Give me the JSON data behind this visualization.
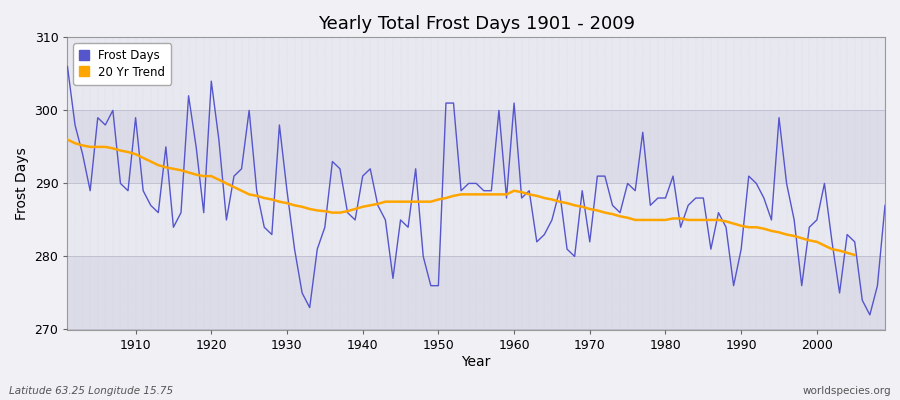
{
  "title": "Yearly Total Frost Days 1901 - 2009",
  "xlabel": "Year",
  "ylabel": "Frost Days",
  "ylim": [
    270,
    310
  ],
  "xlim": [
    1901,
    2009
  ],
  "yticks": [
    270,
    280,
    290,
    300,
    310
  ],
  "xticks": [
    1910,
    1920,
    1930,
    1940,
    1950,
    1960,
    1970,
    1980,
    1990,
    2000
  ],
  "line_color": "#5555cc",
  "trend_color": "#FFA500",
  "bg_color": "#f0f0f5",
  "bg_band1": "#e8e8ee",
  "bg_band2": "#d8d8e4",
  "grid_color": "#ccccdd",
  "bottom_left_label": "Latitude 63.25 Longitude 15.75",
  "bottom_right_label": "worldspecies.org",
  "legend_labels": [
    "Frost Days",
    "20 Yr Trend"
  ],
  "frost_days": {
    "1901": 306,
    "1902": 298,
    "1903": 294,
    "1904": 289,
    "1905": 299,
    "1906": 298,
    "1907": 300,
    "1908": 290,
    "1909": 289,
    "1910": 299,
    "1911": 289,
    "1912": 287,
    "1913": 286,
    "1914": 295,
    "1915": 284,
    "1916": 286,
    "1917": 302,
    "1918": 295,
    "1919": 286,
    "1920": 304,
    "1921": 296,
    "1922": 285,
    "1923": 291,
    "1924": 292,
    "1925": 300,
    "1926": 289,
    "1927": 284,
    "1928": 283,
    "1929": 298,
    "1930": 289,
    "1931": 281,
    "1932": 275,
    "1933": 273,
    "1934": 281,
    "1935": 284,
    "1936": 293,
    "1937": 292,
    "1938": 286,
    "1939": 285,
    "1940": 291,
    "1941": 292,
    "1942": 287,
    "1943": 285,
    "1944": 277,
    "1945": 285,
    "1946": 284,
    "1947": 292,
    "1948": 280,
    "1949": 276,
    "1950": 276,
    "1951": 301,
    "1952": 301,
    "1953": 289,
    "1954": 290,
    "1955": 290,
    "1956": 289,
    "1957": 289,
    "1958": 300,
    "1959": 288,
    "1960": 301,
    "1961": 288,
    "1962": 289,
    "1963": 282,
    "1964": 283,
    "1965": 285,
    "1966": 289,
    "1967": 281,
    "1968": 280,
    "1969": 289,
    "1970": 282,
    "1971": 291,
    "1972": 291,
    "1973": 287,
    "1974": 286,
    "1975": 290,
    "1976": 289,
    "1977": 297,
    "1978": 287,
    "1979": 288,
    "1980": 288,
    "1981": 291,
    "1982": 284,
    "1983": 287,
    "1984": 288,
    "1985": 288,
    "1986": 281,
    "1987": 286,
    "1988": 284,
    "1989": 276,
    "1990": 281,
    "1991": 291,
    "1992": 290,
    "1993": 288,
    "1994": 285,
    "1995": 299,
    "1996": 290,
    "1997": 285,
    "1998": 276,
    "1999": 284,
    "2000": 285,
    "2001": 290,
    "2002": 282,
    "2003": 275,
    "2004": 283,
    "2005": 282,
    "2006": 274,
    "2007": 272,
    "2008": 276,
    "2009": 287
  },
  "trend_20yr": {
    "1901": 296.0,
    "1902": 295.5,
    "1903": 295.2,
    "1904": 295.0,
    "1905": 295.0,
    "1906": 295.0,
    "1907": 294.8,
    "1908": 294.5,
    "1909": 294.3,
    "1910": 294.0,
    "1911": 293.5,
    "1912": 293.0,
    "1913": 292.5,
    "1914": 292.2,
    "1915": 292.0,
    "1916": 291.8,
    "1917": 291.5,
    "1918": 291.2,
    "1919": 291.0,
    "1920": 291.0,
    "1921": 290.5,
    "1922": 290.0,
    "1923": 289.5,
    "1924": 289.0,
    "1925": 288.5,
    "1926": 288.3,
    "1927": 288.0,
    "1928": 287.8,
    "1929": 287.5,
    "1930": 287.3,
    "1931": 287.0,
    "1932": 286.8,
    "1933": 286.5,
    "1934": 286.3,
    "1935": 286.2,
    "1936": 286.0,
    "1937": 286.0,
    "1938": 286.2,
    "1939": 286.5,
    "1940": 286.8,
    "1941": 287.0,
    "1942": 287.2,
    "1943": 287.5,
    "1944": 287.5,
    "1945": 287.5,
    "1946": 287.5,
    "1947": 287.5,
    "1948": 287.5,
    "1949": 287.5,
    "1950": 287.8,
    "1951": 288.0,
    "1952": 288.3,
    "1953": 288.5,
    "1954": 288.5,
    "1955": 288.5,
    "1956": 288.5,
    "1957": 288.5,
    "1958": 288.5,
    "1959": 288.5,
    "1960": 289.0,
    "1961": 288.8,
    "1962": 288.5,
    "1963": 288.3,
    "1964": 288.0,
    "1965": 287.8,
    "1966": 287.5,
    "1967": 287.3,
    "1968": 287.0,
    "1969": 286.8,
    "1970": 286.5,
    "1971": 286.3,
    "1972": 286.0,
    "1973": 285.8,
    "1974": 285.5,
    "1975": 285.3,
    "1976": 285.0,
    "1977": 285.0,
    "1978": 285.0,
    "1979": 285.0,
    "1980": 285.0,
    "1981": 285.2,
    "1982": 285.2,
    "1983": 285.0,
    "1984": 285.0,
    "1985": 285.0,
    "1986": 285.0,
    "1987": 285.0,
    "1988": 284.8,
    "1989": 284.5,
    "1990": 284.2,
    "1991": 284.0,
    "1992": 284.0,
    "1993": 283.8,
    "1994": 283.5,
    "1995": 283.3,
    "1996": 283.0,
    "1997": 282.8,
    "1998": 282.5,
    "1999": 282.2,
    "2000": 282.0,
    "2001": 281.5,
    "2002": 281.0,
    "2003": 280.8,
    "2004": 280.5,
    "2005": 280.2
  }
}
